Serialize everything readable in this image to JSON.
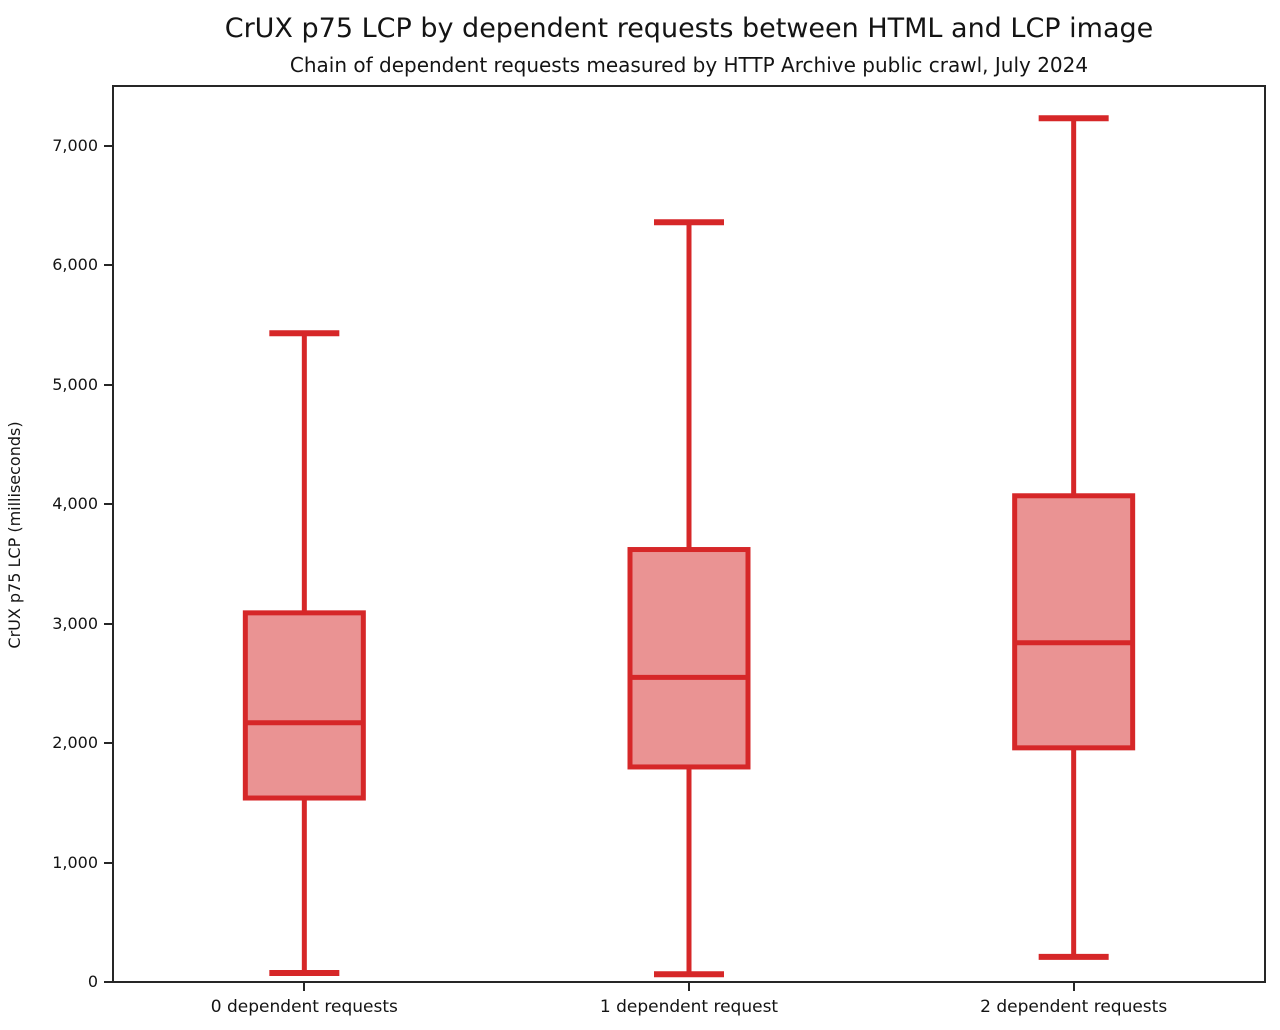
{
  "chart_data": {
    "type": "boxplot",
    "title": "CrUX p75 LCP by dependent requests between HTML and LCP image",
    "subtitle": "Chain of dependent requests measured by HTTP Archive public crawl, July 2024",
    "ylabel": "CrUX p75 LCP (milliseconds)",
    "xlabel": "",
    "categories": [
      "0 dependent requests",
      "1 dependent request",
      "2 dependent requests"
    ],
    "series": [
      {
        "category": "0 dependent requests",
        "whisker_low": 75,
        "q1": 1540,
        "median": 2170,
        "q3": 3090,
        "whisker_high": 5430
      },
      {
        "category": "1 dependent request",
        "whisker_low": 65,
        "q1": 1800,
        "median": 2550,
        "q3": 3620,
        "whisker_high": 6360
      },
      {
        "category": "2 dependent requests",
        "whisker_low": 210,
        "q1": 1960,
        "median": 2840,
        "q3": 4070,
        "whisker_high": 7230
      }
    ],
    "ylim": [
      0,
      7500
    ],
    "yticks": [
      0,
      1000,
      2000,
      3000,
      4000,
      5000,
      6000,
      7000
    ],
    "ytick_labels": [
      "0",
      "1,000",
      "2,000",
      "3,000",
      "4,000",
      "5,000",
      "6,000",
      "7,000"
    ],
    "grid": false,
    "legend": null,
    "colors": {
      "box_line": "#d62728",
      "box_fill": "#ea9393",
      "axis": "#262626",
      "text": "#141414",
      "background": "#ffffff"
    }
  }
}
